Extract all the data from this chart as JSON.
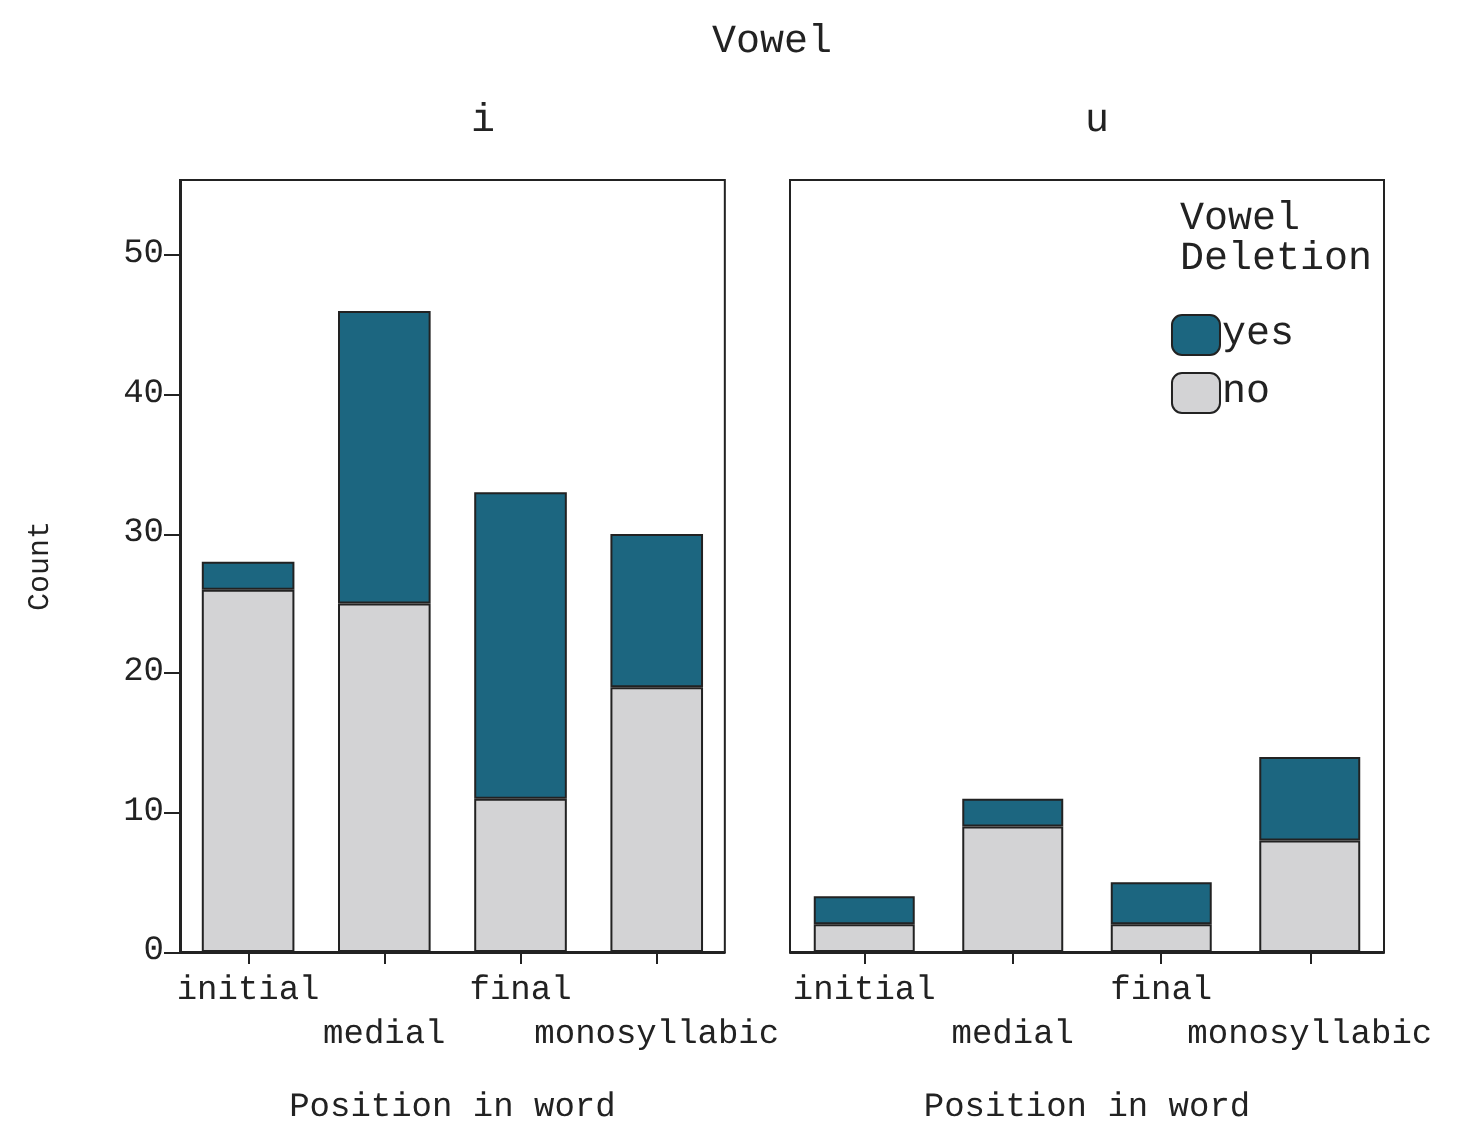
{
  "chart_data": [
    {
      "type": "bar",
      "title": "Vowel",
      "subtitle": "i",
      "xlabel": "Position in word",
      "ylabel": "Count",
      "categories": [
        "initial",
        "medial",
        "final",
        "monosyllabic"
      ],
      "stacked": true,
      "series": [
        {
          "color": "#d3d3d5",
          "values": [
            26,
            25,
            11,
            19
          ]
        },
        {
          "color": "#1c6680",
          "values": [
            2,
            21,
            22,
            11
          ]
        }
      ],
      "ylim": [
        0,
        55.4
      ],
      "yticks": [
        0,
        10,
        20,
        30,
        40,
        50
      ],
      "grid": false,
      "legend": false
    },
    {
      "type": "bar",
      "subtitle": "u",
      "xlabel": "Position in word",
      "categories": [
        "initial",
        "medial",
        "final",
        "monosyllabic"
      ],
      "stacked": true,
      "series": [
        {
          "name": "no",
          "color": "#d3d3d5",
          "values": [
            2,
            9,
            2,
            8
          ]
        },
        {
          "name": "yes",
          "color": "#1c6680",
          "values": [
            2,
            2,
            3,
            6
          ]
        }
      ],
      "ylim": [
        0,
        55.4
      ],
      "yticks": [
        0,
        10,
        20,
        30,
        40,
        50
      ],
      "grid": false,
      "tick_labels": "x",
      "legend": "top right",
      "legend_title": "Vowel Deletion"
    }
  ]
}
